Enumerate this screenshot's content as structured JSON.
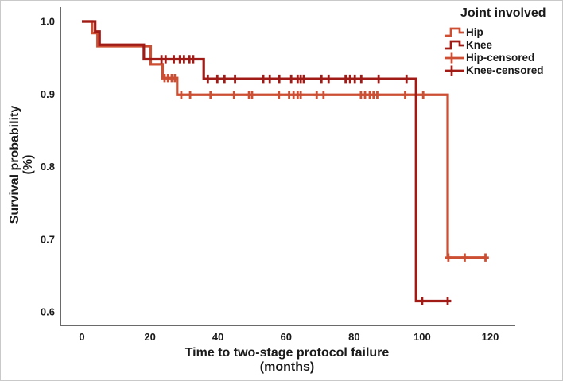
{
  "figure": {
    "background": "#ffffff",
    "axis_color": "#6a6a6a",
    "text_color": "#1a1a1a"
  },
  "chart_data": {
    "type": "line",
    "subtype": "kaplan-meier-step-survival",
    "title": "",
    "xlabel": "Time to two-stage protocol failure",
    "xlabel_unit": "(months)",
    "ylabel": "Survival probability",
    "ylabel_unit": "(%)",
    "xlim": [
      0,
      120
    ],
    "ylim": [
      0.58,
      1.0
    ],
    "grid": false,
    "x_ticks": [
      0,
      20,
      40,
      60,
      80,
      100,
      120
    ],
    "y_ticks": [
      "1.0",
      "0.9",
      "0.8",
      "0.7",
      "0.6"
    ],
    "legend": {
      "title": "Joint involved",
      "position": "top-right",
      "items": [
        {
          "label": "Hip",
          "marker": "step-line",
          "color": "#CC4E33"
        },
        {
          "label": "Knee",
          "marker": "step-line",
          "color": "#A11B16"
        },
        {
          "label": "Hip-censored",
          "marker": "plus-cross",
          "color": "#CC4E33"
        },
        {
          "label": "Knee-censored",
          "marker": "plus-cross",
          "color": "#A11B16"
        }
      ]
    },
    "series": [
      {
        "name": "Hip",
        "color": "#CC4E33",
        "steps": [
          [
            0,
            1.0
          ],
          [
            3.0,
            0.984
          ],
          [
            4.6,
            0.966
          ],
          [
            20.2,
            0.941
          ],
          [
            23.7,
            0.922
          ],
          [
            28.0,
            0.899
          ],
          [
            107.5,
            0.675
          ],
          [
            118.8,
            0.675
          ]
        ],
        "censored_times": [
          24.3,
          25.3,
          26.4,
          27.3,
          29.2,
          31.8,
          37.8,
          44.7,
          49.1,
          50.0,
          57.9,
          60.9,
          62.2,
          63.4,
          64.3,
          69.0,
          71.0,
          82.0,
          83.2,
          84.6,
          85.7,
          86.8,
          95.0,
          100.3,
          107.7,
          112.5,
          118.6
        ]
      },
      {
        "name": "Knee",
        "color": "#A11B16",
        "steps": [
          [
            0,
            1.0
          ],
          [
            3.9,
            0.986
          ],
          [
            5.2,
            0.968
          ],
          [
            18.2,
            0.948
          ],
          [
            35.8,
            0.921
          ],
          [
            98.2,
            0.615
          ],
          [
            108.5,
            0.615
          ]
        ],
        "censored_times": [
          23.4,
          24.6,
          27.0,
          28.8,
          30.0,
          31.6,
          32.7,
          37.0,
          39.8,
          41.9,
          45.0,
          53.3,
          55.2,
          58.0,
          61.5,
          63.4,
          64.3,
          65.2,
          70.4,
          72.5,
          77.5,
          78.8,
          80.2,
          82.1,
          87.2,
          95.4,
          100.0,
          107.5
        ]
      }
    ]
  }
}
